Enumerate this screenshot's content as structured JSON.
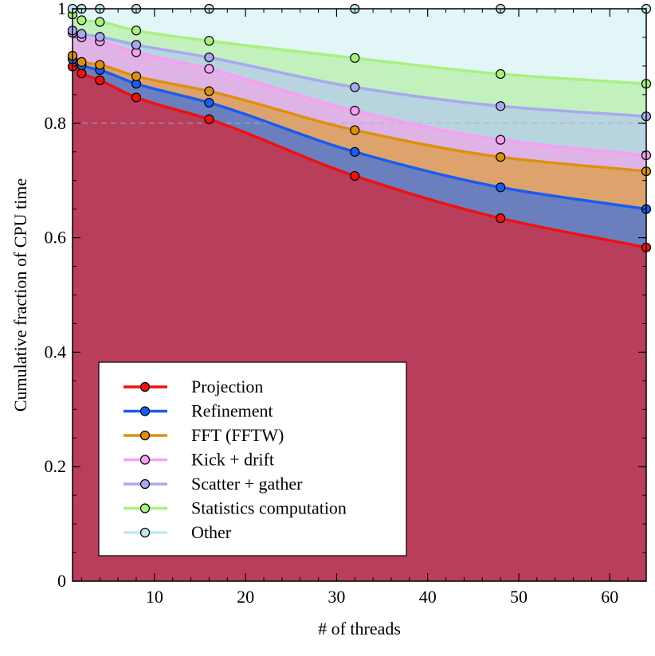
{
  "chart_data": {
    "type": "area",
    "stacked": "cumulative",
    "xlabel": "# of threads",
    "ylabel": "Cumulative fraction of CPU time",
    "xlim": [
      1,
      64
    ],
    "ylim": [
      0,
      1
    ],
    "x_ticks": [
      10,
      20,
      30,
      40,
      50,
      60
    ],
    "y_ticks": [
      0,
      0.2,
      0.4,
      0.6,
      0.8,
      1
    ],
    "y_tick_labels": [
      "0",
      "0.2",
      "0.4",
      "0.6",
      "0.8",
      "1"
    ],
    "x": [
      1,
      2,
      4,
      8,
      16,
      32,
      48,
      64
    ],
    "series": [
      {
        "name": "Projection",
        "line_color": "#ee1111",
        "fill_color": "#b93e5c",
        "values": [
          0.899,
          0.887,
          0.875,
          0.845,
          0.807,
          0.708,
          0.634,
          0.583
        ]
      },
      {
        "name": "Refinement",
        "line_color": "#1a5cf0",
        "fill_color": "#6b7fbf",
        "values": [
          0.912,
          0.901,
          0.893,
          0.869,
          0.836,
          0.75,
          0.688,
          0.65
        ]
      },
      {
        "name": "FFT (FFTW)",
        "line_color": "#dd9010",
        "fill_color": "#dea36d",
        "values": [
          0.918,
          0.907,
          0.902,
          0.882,
          0.856,
          0.788,
          0.741,
          0.716
        ]
      },
      {
        "name": "Kick + drift",
        "line_color": "#f7a0f2",
        "fill_color": "#e0b3e6",
        "values": [
          0.958,
          0.95,
          0.943,
          0.924,
          0.895,
          0.822,
          0.771,
          0.744
        ]
      },
      {
        "name": "Scatter + gather",
        "line_color": "#aaa8f0",
        "fill_color": "#b7d4df",
        "values": [
          0.962,
          0.956,
          0.951,
          0.937,
          0.915,
          0.863,
          0.83,
          0.812
        ]
      },
      {
        "name": "Statistics computation",
        "line_color": "#aaf080",
        "fill_color": "#c2f1bd",
        "values": [
          0.99,
          0.98,
          0.977,
          0.962,
          0.944,
          0.914,
          0.886,
          0.869
        ]
      },
      {
        "name": "Other",
        "line_color": "#c3e7ee",
        "fill_color": "#e2f6f7",
        "values": [
          1.0,
          1.0,
          1.0,
          1.0,
          1.0,
          1.0,
          1.0,
          1.0
        ]
      }
    ],
    "legend_position": "lower-left",
    "gridline_y": 0.8
  }
}
